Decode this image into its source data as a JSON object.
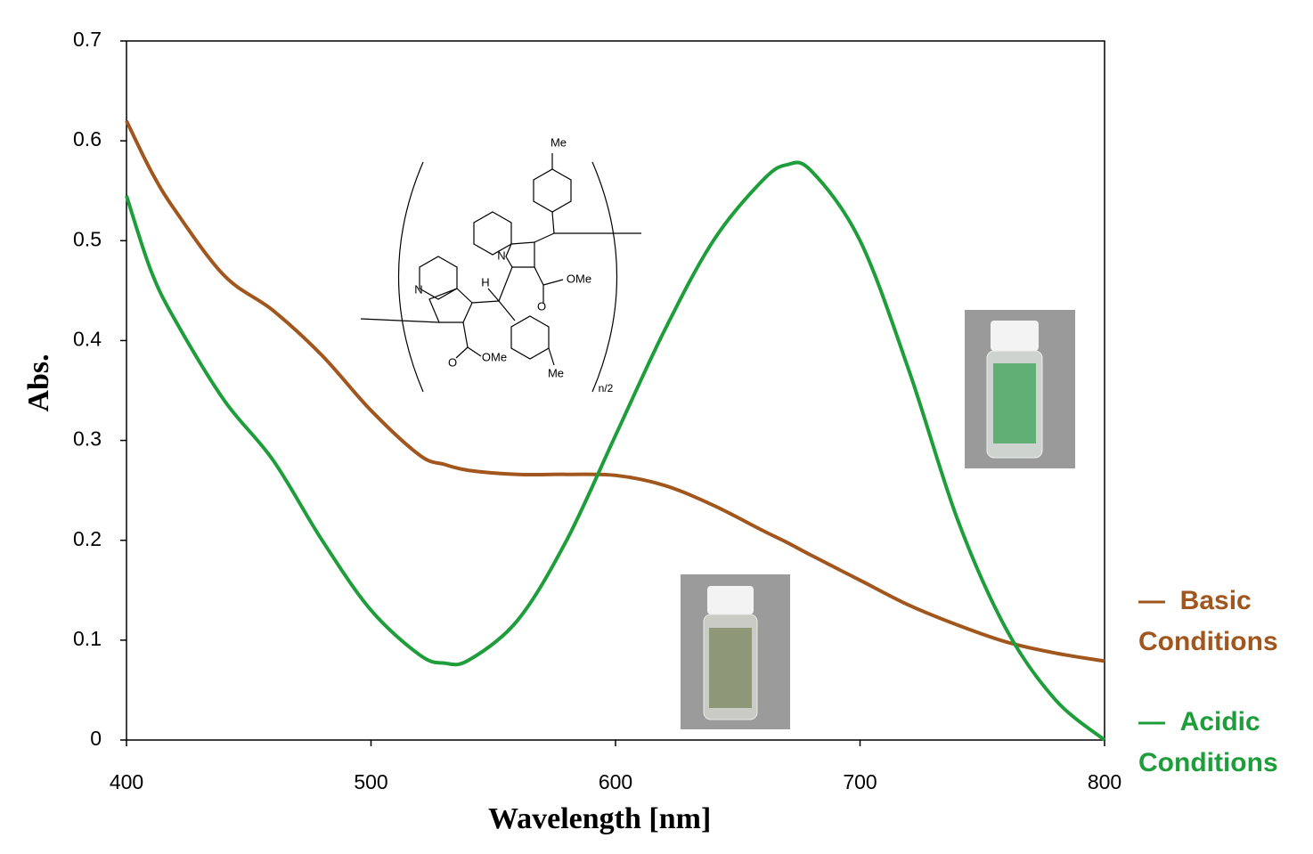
{
  "chart_data": {
    "type": "line",
    "xlabel": "Wavelength [nm]",
    "ylabel": "Abs.",
    "x": [
      400,
      410,
      420,
      440,
      460,
      480,
      500,
      520,
      530,
      540,
      560,
      580,
      600,
      620,
      640,
      660,
      670,
      680,
      700,
      720,
      740,
      760,
      780,
      800
    ],
    "series": [
      {
        "name": "Basic Conditions",
        "color": "#a0561c",
        "values": [
          0.62,
          0.57,
          0.53,
          0.465,
          0.43,
          0.385,
          0.33,
          0.285,
          0.276,
          0.27,
          0.266,
          0.266,
          0.265,
          0.255,
          0.235,
          0.21,
          0.198,
          0.185,
          0.16,
          0.135,
          0.115,
          0.098,
          0.087,
          0.079
        ]
      },
      {
        "name": "Acidic Conditions",
        "color": "#1e9e3a",
        "values": [
          0.545,
          0.47,
          0.42,
          0.34,
          0.28,
          0.2,
          0.13,
          0.085,
          0.077,
          0.08,
          0.12,
          0.2,
          0.305,
          0.41,
          0.5,
          0.56,
          0.576,
          0.57,
          0.5,
          0.37,
          0.22,
          0.11,
          0.04,
          0.0
        ]
      }
    ],
    "xlim": [
      400,
      800
    ],
    "xticks": [
      400,
      500,
      600,
      700,
      800
    ],
    "ylim": [
      0,
      0.7
    ],
    "yticks": [
      0,
      0.1,
      0.2,
      0.3,
      0.4,
      0.5,
      0.6,
      0.7
    ],
    "grid": false,
    "legend": "right",
    "structure_labels": [
      "Me",
      "OMe",
      "H",
      "N",
      "O",
      "N",
      "OMe",
      "O",
      "Me",
      "n/2"
    ]
  }
}
